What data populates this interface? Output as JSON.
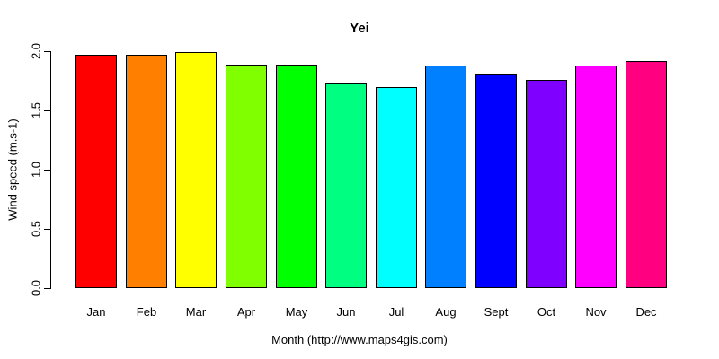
{
  "page": {
    "title": "Yei"
  },
  "chart_data": {
    "type": "bar",
    "title": "Yei",
    "xlabel": "Month (http://www.maps4gis.com)",
    "ylabel": "Wind speed (m.s-1)",
    "categories": [
      "Jan",
      "Feb",
      "Mar",
      "Apr",
      "May",
      "Jun",
      "Jul",
      "Aug",
      "Sept",
      "Oct",
      "Nov",
      "Dec"
    ],
    "values": [
      1.97,
      1.97,
      1.99,
      1.89,
      1.89,
      1.73,
      1.7,
      1.88,
      1.8,
      1.76,
      1.88,
      1.92
    ],
    "colors": [
      "#FF0000",
      "#FF8000",
      "#FFFF00",
      "#80FF00",
      "#00FF00",
      "#00FF80",
      "#00FFFF",
      "#0080FF",
      "#0000FF",
      "#8000FF",
      "#FF00FF",
      "#FF0080"
    ],
    "bar_border_color": "#000000",
    "axis_color": "#000000",
    "background_color": "#FFFFFF",
    "ylim": [
      0.0,
      2.0
    ],
    "yticks": [
      0.0,
      0.5,
      1.0,
      1.5,
      2.0
    ],
    "ytick_labels": [
      "0.0",
      "0.5",
      "1.0",
      "1.5",
      "2.0"
    ],
    "grid": false,
    "legend": "none"
  }
}
